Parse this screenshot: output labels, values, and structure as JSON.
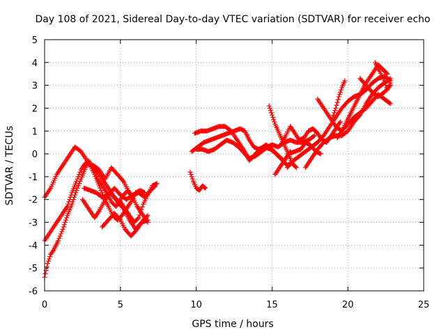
{
  "chart_data": {
    "type": "scatter",
    "title": "Day 108 of 2021, Sidereal Day-to-day VTEC variation (SDTVAR) for receiver echo",
    "xlabel": "GPS time / hours",
    "ylabel": "SDTVAR / TECUs",
    "xlim": [
      0,
      25
    ],
    "ylim": [
      -6,
      5
    ],
    "xticks": [
      0,
      5,
      10,
      15,
      20,
      25
    ],
    "yticks": [
      -6,
      -5,
      -4,
      -3,
      -2,
      -1,
      0,
      1,
      2,
      3,
      4,
      5
    ],
    "grid": true,
    "marker": "+",
    "color": "#ff0000",
    "tracks": [
      [
        [
          0.0,
          -1.9
        ],
        [
          0.4,
          -1.5
        ],
        [
          0.8,
          -0.9
        ],
        [
          1.2,
          -0.5
        ],
        [
          1.6,
          -0.1
        ],
        [
          2.0,
          0.3
        ],
        [
          2.4,
          0.1
        ],
        [
          2.8,
          -0.3
        ],
        [
          3.2,
          -0.6
        ],
        [
          3.6,
          -0.9
        ],
        [
          4.0,
          -1.3
        ],
        [
          4.4,
          -1.7
        ],
        [
          4.8,
          -2.1
        ],
        [
          5.2,
          -2.4
        ],
        [
          5.6,
          -2.9
        ],
        [
          6.0,
          -3.3
        ],
        [
          6.4,
          -3.0
        ],
        [
          6.8,
          -2.9
        ]
      ],
      [
        [
          0.0,
          -3.8
        ],
        [
          0.3,
          -3.5
        ],
        [
          0.6,
          -3.2
        ],
        [
          0.9,
          -2.9
        ],
        [
          1.2,
          -2.6
        ],
        [
          1.5,
          -2.3
        ],
        [
          1.8,
          -1.7
        ],
        [
          2.1,
          -1.2
        ],
        [
          2.4,
          -0.7
        ],
        [
          2.7,
          -0.4
        ],
        [
          3.0,
          -0.5
        ],
        [
          3.3,
          -0.9
        ],
        [
          3.6,
          -1.4
        ],
        [
          3.9,
          -1.9
        ],
        [
          4.2,
          -2.3
        ],
        [
          4.5,
          -2.7
        ],
        [
          4.8,
          -2.9
        ],
        [
          5.1,
          -2.7
        ],
        [
          5.4,
          -2.4
        ],
        [
          5.7,
          -2.1
        ],
        [
          6.0,
          -1.7
        ],
        [
          6.3,
          -1.6
        ],
        [
          6.6,
          -1.7
        ]
      ],
      [
        [
          0.0,
          -5.4
        ],
        [
          0.2,
          -4.8
        ],
        [
          0.4,
          -4.4
        ],
        [
          0.6,
          -4.2
        ],
        [
          0.9,
          -3.8
        ],
        [
          1.2,
          -3.3
        ],
        [
          1.5,
          -2.7
        ],
        [
          1.8,
          -2.2
        ],
        [
          2.1,
          -1.6
        ],
        [
          2.4,
          -1.1
        ],
        [
          2.7,
          -0.6
        ],
        [
          2.9,
          -0.3
        ],
        [
          3.2,
          -0.6
        ],
        [
          3.5,
          -1.1
        ],
        [
          3.8,
          -1.4
        ],
        [
          4.1,
          -1.7
        ],
        [
          4.4,
          -2.1
        ],
        [
          4.7,
          -2.3
        ],
        [
          5.0,
          -2.1
        ],
        [
          5.3,
          -2.4
        ],
        [
          5.6,
          -2.7
        ],
        [
          5.9,
          -3.0
        ],
        [
          6.2,
          -2.8
        ],
        [
          6.5,
          -2.2
        ],
        [
          6.8,
          -1.8
        ],
        [
          7.1,
          -1.4
        ],
        [
          7.4,
          -1.3
        ]
      ],
      [
        [
          2.5,
          -2.0
        ],
        [
          2.9,
          -2.4
        ],
        [
          3.3,
          -2.8
        ],
        [
          3.6,
          -2.5
        ],
        [
          4.0,
          -2.0
        ],
        [
          4.3,
          -1.7
        ],
        [
          4.6,
          -1.9
        ],
        [
          4.9,
          -2.1
        ],
        [
          5.2,
          -1.8
        ],
        [
          5.5,
          -1.6
        ],
        [
          5.8,
          -1.9
        ],
        [
          6.1,
          -2.3
        ],
        [
          6.4,
          -2.6
        ],
        [
          6.8,
          -3.0
        ]
      ],
      [
        [
          2.6,
          -1.5
        ],
        [
          3.0,
          -1.6
        ],
        [
          3.4,
          -1.7
        ],
        [
          3.8,
          -1.9
        ],
        [
          4.2,
          -1.8
        ],
        [
          4.6,
          -1.5
        ],
        [
          5.0,
          -1.8
        ],
        [
          5.4,
          -2.0
        ],
        [
          5.8,
          -1.8
        ],
        [
          6.2,
          -1.7
        ],
        [
          6.6,
          -1.9
        ],
        [
          7.0,
          -1.6
        ],
        [
          7.3,
          -1.4
        ]
      ],
      [
        [
          3.8,
          -3.2
        ],
        [
          4.2,
          -2.9
        ],
        [
          4.6,
          -2.6
        ],
        [
          5.0,
          -2.9
        ],
        [
          5.3,
          -3.3
        ],
        [
          5.7,
          -3.6
        ],
        [
          6.1,
          -3.3
        ],
        [
          6.5,
          -2.9
        ],
        [
          6.8,
          -2.7
        ]
      ],
      [
        [
          3.2,
          -0.5
        ],
        [
          3.6,
          -0.7
        ],
        [
          4.0,
          -1.1
        ],
        [
          4.4,
          -0.6
        ],
        [
          4.8,
          -0.9
        ],
        [
          5.2,
          -1.2
        ],
        [
          5.5,
          -1.6
        ],
        [
          5.8,
          -2.0
        ]
      ],
      [
        [
          9.6,
          -0.8
        ],
        [
          9.8,
          -1.2
        ],
        [
          10.0,
          -1.5
        ],
        [
          10.2,
          -1.6
        ],
        [
          10.4,
          -1.4
        ],
        [
          10.6,
          -1.5
        ]
      ],
      [
        [
          9.7,
          0.1
        ],
        [
          10.1,
          0.3
        ],
        [
          10.5,
          0.5
        ],
        [
          10.9,
          0.6
        ],
        [
          11.3,
          0.7
        ],
        [
          11.7,
          0.8
        ],
        [
          12.1,
          0.9
        ],
        [
          12.5,
          1.0
        ],
        [
          12.9,
          1.1
        ],
        [
          13.2,
          1.0
        ],
        [
          13.5,
          0.6
        ],
        [
          13.8,
          0.3
        ],
        [
          14.1,
          0.2
        ],
        [
          14.5,
          0.3
        ],
        [
          14.9,
          0.2
        ],
        [
          15.3,
          0.0
        ],
        [
          15.7,
          -0.3
        ],
        [
          16.0,
          -0.5
        ],
        [
          16.3,
          -0.4
        ],
        [
          16.6,
          -0.6
        ]
      ],
      [
        [
          9.9,
          0.9
        ],
        [
          10.3,
          1.0
        ],
        [
          10.7,
          1.0
        ],
        [
          11.1,
          1.1
        ],
        [
          11.5,
          1.2
        ],
        [
          11.9,
          1.2
        ],
        [
          12.3,
          1.0
        ],
        [
          12.6,
          0.7
        ],
        [
          12.9,
          0.4
        ],
        [
          13.2,
          0.1
        ],
        [
          13.5,
          -0.3
        ],
        [
          13.9,
          0.0
        ],
        [
          14.2,
          0.2
        ],
        [
          14.6,
          0.4
        ],
        [
          15.0,
          0.2
        ],
        [
          15.4,
          -0.1
        ],
        [
          15.8,
          -0.3
        ],
        [
          16.1,
          0.0
        ],
        [
          16.5,
          0.1
        ],
        [
          16.9,
          0.2
        ],
        [
          17.2,
          0.5
        ],
        [
          17.5,
          0.4
        ],
        [
          17.9,
          0.1
        ],
        [
          18.2,
          0.0
        ]
      ],
      [
        [
          10.0,
          0.2
        ],
        [
          10.4,
          0.2
        ],
        [
          10.8,
          0.1
        ],
        [
          11.2,
          0.2
        ],
        [
          11.6,
          0.4
        ],
        [
          12.0,
          0.6
        ],
        [
          12.4,
          0.5
        ],
        [
          12.8,
          0.3
        ],
        [
          13.2,
          0.0
        ],
        [
          13.5,
          -0.2
        ],
        [
          13.9,
          -0.1
        ],
        [
          14.3,
          0.1
        ],
        [
          14.7,
          0.3
        ],
        [
          15.0,
          0.4
        ],
        [
          15.4,
          0.3
        ],
        [
          15.8,
          0.5
        ],
        [
          16.2,
          0.6
        ],
        [
          16.6,
          0.5
        ],
        [
          17.0,
          0.5
        ],
        [
          17.4,
          0.6
        ],
        [
          17.8,
          0.8
        ]
      ],
      [
        [
          14.8,
          2.1
        ],
        [
          15.0,
          1.7
        ],
        [
          15.2,
          1.3
        ],
        [
          15.4,
          1.0
        ],
        [
          15.6,
          0.7
        ],
        [
          15.8,
          0.4
        ],
        [
          16.0,
          0.1
        ],
        [
          16.2,
          -0.2
        ],
        [
          16.3,
          -0.4
        ]
      ],
      [
        [
          15.2,
          -0.9
        ],
        [
          15.5,
          -0.6
        ],
        [
          15.8,
          -0.3
        ],
        [
          16.0,
          -0.1
        ],
        [
          16.2,
          0.1
        ]
      ],
      [
        [
          15.6,
          0.4
        ],
        [
          15.9,
          0.8
        ],
        [
          16.2,
          1.2
        ],
        [
          16.5,
          0.9
        ],
        [
          16.8,
          0.6
        ],
        [
          17.1,
          0.7
        ],
        [
          17.4,
          1.0
        ],
        [
          17.7,
          1.1
        ],
        [
          18.0,
          0.9
        ],
        [
          18.3,
          0.6
        ],
        [
          18.6,
          0.5
        ],
        [
          18.9,
          0.8
        ],
        [
          19.2,
          1.1
        ],
        [
          19.5,
          1.4
        ]
      ],
      [
        [
          16.0,
          -0.6
        ],
        [
          16.4,
          -0.3
        ],
        [
          16.8,
          -0.1
        ],
        [
          17.2,
          0.1
        ],
        [
          17.6,
          0.3
        ],
        [
          18.0,
          0.5
        ],
        [
          18.4,
          0.8
        ],
        [
          18.8,
          1.2
        ],
        [
          19.2,
          1.6
        ],
        [
          19.6,
          2.0
        ],
        [
          20.0,
          2.3
        ],
        [
          20.4,
          2.5
        ],
        [
          20.8,
          2.6
        ],
        [
          21.2,
          2.8
        ],
        [
          21.6,
          3.1
        ],
        [
          22.0,
          3.3
        ],
        [
          22.4,
          3.4
        ],
        [
          22.8,
          3.2
        ]
      ],
      [
        [
          17.2,
          -0.6
        ],
        [
          17.6,
          -0.2
        ],
        [
          18.0,
          0.2
        ],
        [
          18.4,
          0.5
        ],
        [
          18.8,
          0.7
        ],
        [
          19.2,
          0.8
        ],
        [
          19.6,
          0.8
        ],
        [
          20.0,
          1.0
        ],
        [
          20.4,
          1.4
        ],
        [
          20.8,
          1.7
        ],
        [
          21.2,
          2.2
        ],
        [
          21.6,
          2.6
        ],
        [
          22.0,
          2.9
        ],
        [
          22.4,
          3.1
        ],
        [
          22.8,
          3.3
        ]
      ],
      [
        [
          18.0,
          2.4
        ],
        [
          18.4,
          2.0
        ],
        [
          18.8,
          1.6
        ],
        [
          19.2,
          1.2
        ],
        [
          19.6,
          1.0
        ],
        [
          20.0,
          1.3
        ],
        [
          20.4,
          1.6
        ],
        [
          20.8,
          1.8
        ],
        [
          21.2,
          2.0
        ],
        [
          21.6,
          2.3
        ],
        [
          22.0,
          2.6
        ],
        [
          22.4,
          2.4
        ],
        [
          22.8,
          2.2
        ]
      ],
      [
        [
          19.0,
          1.6
        ],
        [
          19.2,
          2.0
        ],
        [
          19.4,
          2.5
        ],
        [
          19.6,
          2.9
        ],
        [
          19.8,
          3.2
        ]
      ],
      [
        [
          19.3,
          0.7
        ],
        [
          19.6,
          1.0
        ],
        [
          19.9,
          1.4
        ],
        [
          20.2,
          1.8
        ],
        [
          20.5,
          2.2
        ],
        [
          20.8,
          2.6
        ],
        [
          21.1,
          3.0
        ],
        [
          21.4,
          3.3
        ],
        [
          21.7,
          3.6
        ],
        [
          22.0,
          3.9
        ],
        [
          22.3,
          3.7
        ],
        [
          22.6,
          3.5
        ]
      ],
      [
        [
          20.8,
          3.3
        ],
        [
          21.2,
          3.0
        ],
        [
          21.6,
          2.7
        ],
        [
          22.0,
          2.5
        ],
        [
          22.4,
          2.7
        ],
        [
          22.8,
          3.0
        ]
      ],
      [
        [
          21.8,
          4.0
        ],
        [
          22.1,
          3.6
        ],
        [
          22.4,
          3.2
        ],
        [
          22.6,
          2.8
        ],
        [
          22.8,
          3.1
        ]
      ]
    ]
  }
}
